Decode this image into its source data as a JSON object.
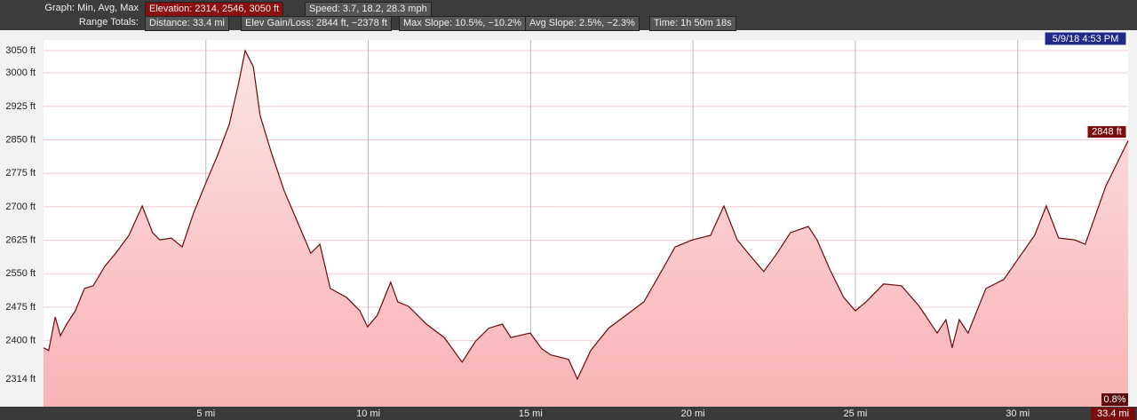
{
  "header": {
    "row1": [
      "Graph: Min, Avg, Max",
      "Elevation: 2314, 2546, 3050 ft",
      "Speed: 3.7, 18.2, 28.3 mph"
    ],
    "row2": [
      "Range Totals:",
      "Distance: 33.4 mi",
      "Elev Gain/Loss: 2844 ft, −2378 ft",
      "Max Slope: 10.5%, −10.2%",
      "Avg Slope: 2.5%, −2.3%",
      "Time: 1h 50m 18s"
    ]
  },
  "chart_data": {
    "type": "area",
    "timestamp": "5/9/18 4:53 PM",
    "end_label": "2848 ft",
    "slope_label": "0.8%",
    "x_end_label": "33.4 mi",
    "color": "#6b0a0a",
    "fill": "#f9b9bb",
    "x": [
      0,
      0.16,
      0.36,
      0.52,
      0.71,
      0.98,
      1.26,
      1.53,
      1.89,
      2.22,
      2.63,
      3.04,
      3.36,
      3.58,
      3.94,
      4.27,
      4.62,
      5.01,
      5.36,
      5.72,
      6.0,
      6.21,
      6.46,
      6.67,
      7.0,
      7.41,
      7.82,
      8.23,
      8.51,
      8.83,
      9.33,
      9.74,
      9.98,
      10.28,
      10.69,
      10.91,
      11.24,
      11.79,
      12.34,
      12.89,
      13.3,
      13.71,
      14.13,
      14.39,
      14.99,
      15.34,
      15.62,
      16.17,
      16.44,
      16.85,
      17.4,
      17.94,
      18.49,
      19.04,
      19.45,
      19.99,
      20.54,
      20.95,
      21.36,
      21.77,
      22.18,
      22.59,
      23.0,
      23.55,
      23.82,
      24.23,
      24.64,
      25.0,
      25.33,
      25.87,
      26.42,
      26.97,
      27.52,
      27.79,
      27.98,
      28.2,
      28.47,
      29.02,
      29.57,
      30.0,
      30.52,
      30.88,
      31.26,
      31.75,
      32.08,
      32.71,
      33.4
    ],
    "values": [
      2384,
      2378,
      2453,
      2411,
      2437,
      2467,
      2517,
      2523,
      2567,
      2596,
      2636,
      2702,
      2642,
      2626,
      2630,
      2610,
      2686,
      2756,
      2815,
      2885,
      2974,
      3050,
      3014,
      2905,
      2825,
      2736,
      2666,
      2596,
      2616,
      2517,
      2497,
      2467,
      2431,
      2457,
      2531,
      2487,
      2477,
      2437,
      2407,
      2352,
      2398,
      2428,
      2437,
      2407,
      2417,
      2382,
      2368,
      2358,
      2314,
      2378,
      2428,
      2457,
      2487,
      2557,
      2610,
      2626,
      2636,
      2702,
      2626,
      2590,
      2555,
      2596,
      2642,
      2656,
      2626,
      2557,
      2497,
      2467,
      2487,
      2527,
      2523,
      2477,
      2417,
      2447,
      2384,
      2447,
      2417,
      2517,
      2537,
      2582,
      2636,
      2702,
      2630,
      2626,
      2616,
      2746,
      2848
    ],
    "xlim": [
      0,
      33.4
    ],
    "ylim": [
      2252,
      3074
    ],
    "xticks": [
      {
        "value": 5,
        "label": "5 mi"
      },
      {
        "value": 10,
        "label": "10 mi"
      },
      {
        "value": 15,
        "label": "15 mi"
      },
      {
        "value": 20,
        "label": "20 mi"
      },
      {
        "value": 25,
        "label": "25 mi"
      },
      {
        "value": 30,
        "label": "30 mi"
      }
    ],
    "yticks": [
      {
        "value": 3050,
        "label": "3050 ft"
      },
      {
        "value": 3000,
        "label": "3000 ft"
      },
      {
        "value": 2925,
        "label": "2925 ft"
      },
      {
        "value": 2850,
        "label": "2850 ft"
      },
      {
        "value": 2775,
        "label": "2775 ft"
      },
      {
        "value": 2700,
        "label": "2700 ft"
      },
      {
        "value": 2625,
        "label": "2625 ft"
      },
      {
        "value": 2550,
        "label": "2550 ft"
      },
      {
        "value": 2475,
        "label": "2475 ft"
      },
      {
        "value": 2400,
        "label": "2400 ft"
      },
      {
        "value": 2314,
        "label": "2314 ft"
      }
    ],
    "grid": true
  }
}
